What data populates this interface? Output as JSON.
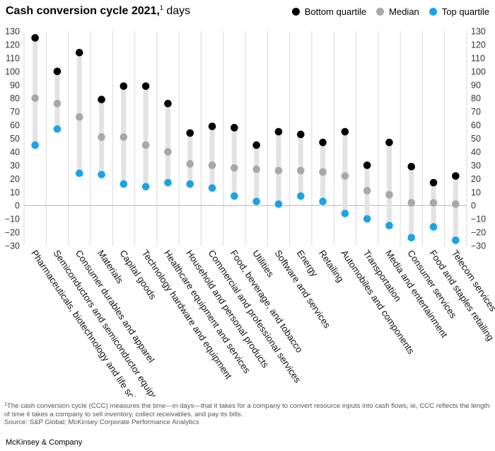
{
  "title": {
    "bold": "Cash conversion cycle 2021,",
    "marker": "1",
    "unit": " days"
  },
  "legend": [
    {
      "label": "Bottom quartile",
      "color": "#000000"
    },
    {
      "label": "Median",
      "color": "#A8A8A8"
    },
    {
      "label": "Top quartile",
      "color": "#1AA3E8"
    }
  ],
  "chart_data": {
    "type": "dot-range",
    "title": "Cash conversion cycle 2021, days",
    "ylim": [
      -30,
      130
    ],
    "yticks": [
      130,
      120,
      110,
      100,
      90,
      80,
      70,
      60,
      50,
      40,
      30,
      20,
      10,
      0,
      -10,
      -20,
      -30
    ],
    "categories": [
      "Pharmaceuticals, biotechnology and life sciences",
      "Semiconductors and semiconductor equipment",
      "Consumer durables and apparel",
      "Materials",
      "Capital goods",
      "Technology hardware and equipment",
      "Healthcare equipment and services",
      "Household and personal products",
      "Commercial and professional services",
      "Food, beverage, and tobacco",
      "Utilities",
      "Software and services",
      "Energy",
      "Retailing",
      "Automobiles and components",
      "Transportation",
      "Media and entertainment",
      "Consumer services",
      "Food and staples retailing",
      "Telecom services"
    ],
    "series": [
      {
        "name": "Bottom quartile",
        "color": "#000000",
        "values": [
          125,
          100,
          114,
          79,
          89,
          89,
          76,
          54,
          59,
          58,
          45,
          55,
          53,
          47,
          55,
          30,
          47,
          29,
          17,
          22
        ]
      },
      {
        "name": "Median",
        "color": "#A8A8A8",
        "values": [
          80,
          76,
          66,
          51,
          51,
          45,
          40,
          31,
          30,
          28,
          27,
          26,
          26,
          25,
          22,
          11,
          8,
          2,
          2,
          1
        ]
      },
      {
        "name": "Top quartile",
        "color": "#1AA3E8",
        "values": [
          45,
          57,
          24,
          23,
          16,
          14,
          17,
          16,
          13,
          7,
          3,
          1,
          7,
          3,
          -6,
          -10,
          -15,
          -24,
          -16,
          -26
        ]
      }
    ]
  },
  "footnote": {
    "marker": "1",
    "text": "The cash conversion cycle (CCC) measures the time—in days—that it takes for a company to convert resource inputs into cash flows, ie, CCC reflects the length of time it takes a company to sell inventory, collect receivables, and pay its bills.",
    "source": "Source: S&P Global; McKinsey Corporate Performance Analytics"
  },
  "brand": "McKinsey & Company"
}
